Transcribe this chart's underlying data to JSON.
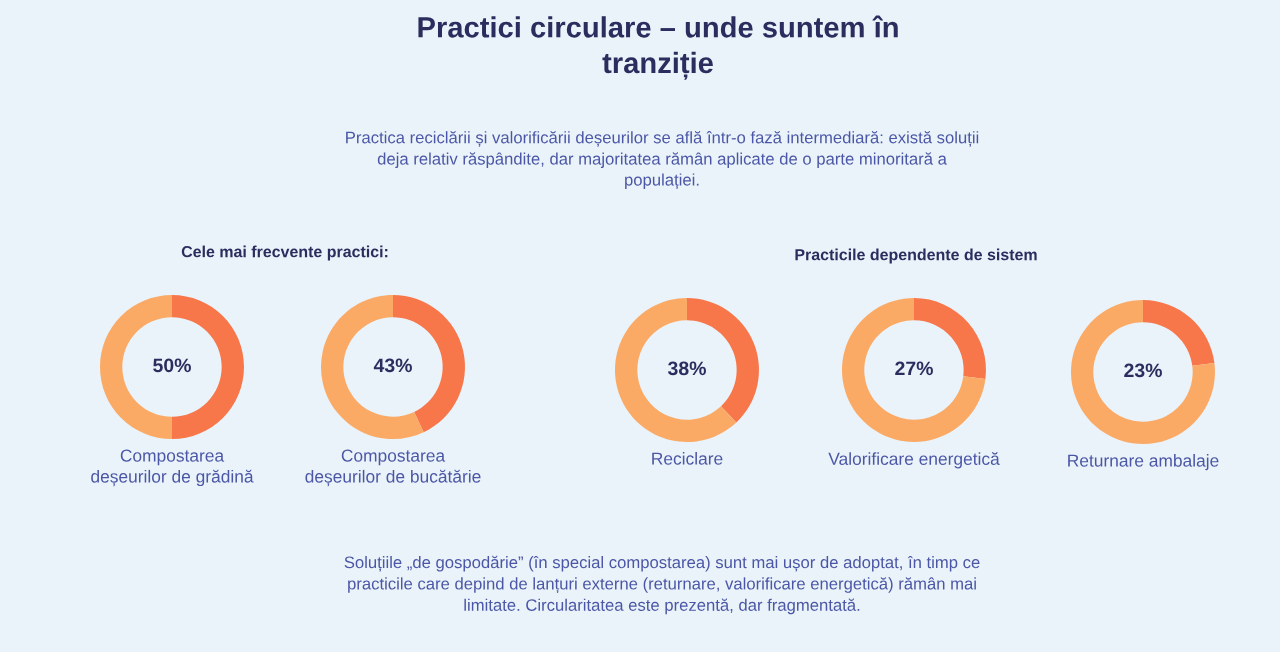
{
  "chart_data": [
    {
      "type": "other",
      "title": "Practici circulare – unde suntem în\ntranziție",
      "subtitle": "Practica reciclării și valorificării deșeurilor se află într-o fază intermediară: există soluții\ndeja relativ răspândite, dar majoritatea rămân aplicate de o parte minoritară a\npopulației.",
      "annotations": [
        "Cele mai frecvente practici:",
        "Practicile dependente de sistem",
        "Soluțiile „de gospodărie” (în special compostarea) sunt mai ușor de adoptat, în timp ce\npracticile care depind de lanțuri externe (returnare, valorificare energetică) rămân mai\nlimitate. Circularitatea este prezentă, dar fragmentată."
      ]
    },
    {
      "type": "donut",
      "xlabel": "Compostarea\ndeșeurilor de grădină",
      "categories": [
        null,
        null
      ],
      "values": [
        50,
        50
      ],
      "colors": [
        "#f7774a",
        "#fbaa66"
      ],
      "value_labels": [
        "50%",
        null
      ]
    },
    {
      "type": "donut",
      "xlabel": "Compostarea\ndeșeurilor de bucătărie",
      "categories": [
        null,
        null
      ],
      "values": [
        43,
        57
      ],
      "colors": [
        "#f7774a",
        "#fbaa66"
      ],
      "value_labels": [
        "43%",
        null
      ]
    },
    {
      "type": "donut",
      "xlabel": "Reciclare",
      "categories": [
        null,
        null
      ],
      "values": [
        38,
        62
      ],
      "colors": [
        "#f7774a",
        "#fbaa66"
      ],
      "value_labels": [
        "38%",
        null
      ]
    },
    {
      "type": "donut",
      "xlabel": "Valorificare energetică",
      "categories": [
        null,
        null
      ],
      "values": [
        27,
        73
      ],
      "colors": [
        "#f7774a",
        "#fbaa66"
      ],
      "value_labels": [
        "27%",
        null
      ]
    },
    {
      "type": "donut",
      "xlabel": "Returnare ambalaje",
      "categories": [
        null,
        null
      ],
      "values": [
        23,
        77
      ],
      "colors": [
        "#f7774a",
        "#fbaa66"
      ],
      "value_labels": [
        "23%",
        null
      ]
    }
  ]
}
